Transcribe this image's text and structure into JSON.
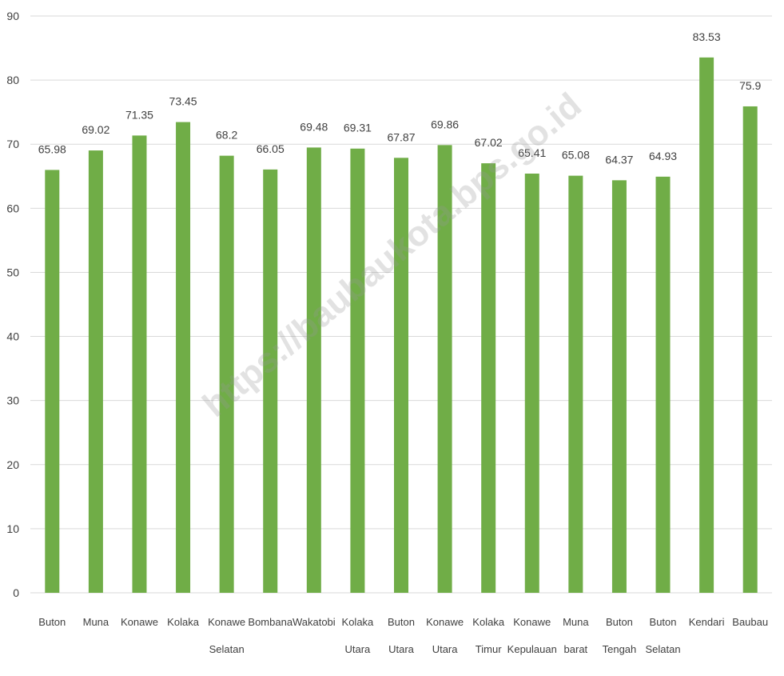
{
  "watermark": "https://baubaukota.bps.go.id",
  "chart_data": {
    "type": "bar",
    "categories": [
      [
        "Buton"
      ],
      [
        "Muna"
      ],
      [
        "Konawe"
      ],
      [
        "Kolaka"
      ],
      [
        "Konawe",
        "Selatan"
      ],
      [
        "Bombana"
      ],
      [
        "Wakatobi"
      ],
      [
        "Kolaka",
        "Utara"
      ],
      [
        "Buton",
        "Utara"
      ],
      [
        "Konawe",
        "Utara"
      ],
      [
        "Kolaka",
        "Timur"
      ],
      [
        "Konawe",
        "Kepulauan"
      ],
      [
        "Muna",
        "barat"
      ],
      [
        "Buton",
        "Tengah"
      ],
      [
        "Buton",
        "Selatan"
      ],
      [
        "Kendari"
      ],
      [
        "Baubau"
      ]
    ],
    "values": [
      65.98,
      69.02,
      71.35,
      73.45,
      68.2,
      66.05,
      69.48,
      69.31,
      67.87,
      69.86,
      67.02,
      65.41,
      65.08,
      64.37,
      64.93,
      83.53,
      75.9
    ],
    "value_labels": [
      "65.98",
      "69.02",
      "71.35",
      "73.45",
      "68.2",
      "66.05",
      "69.48",
      "69.31",
      "67.87",
      "69.86",
      "67.02",
      "65.41",
      "65.08",
      "64.37",
      "64.93",
      "83.53",
      "75.9"
    ],
    "yticks": [
      "0",
      "10",
      "20",
      "30",
      "40",
      "50",
      "60",
      "70",
      "80",
      "90"
    ],
    "ylim": [
      0,
      90
    ],
    "grid": true,
    "bar_color": "#70AD47",
    "grid_color": "#D9D9D9",
    "title": "",
    "xlabel": "",
    "ylabel": ""
  }
}
